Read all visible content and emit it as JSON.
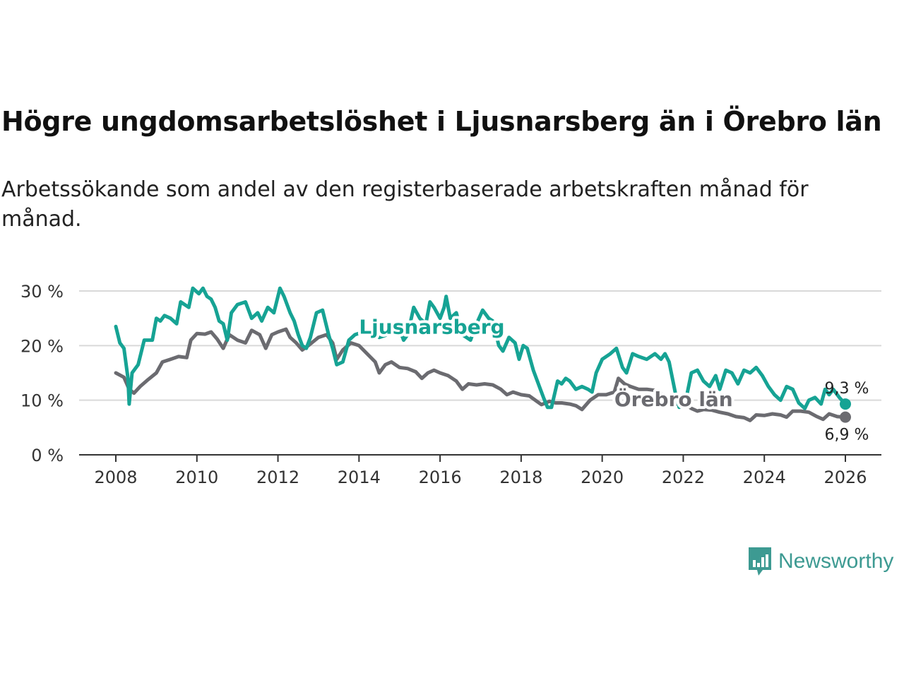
{
  "title": "Högre ungdomsarbetslöshet i Ljusnarsberg än i Örebro län",
  "subtitle": "Arbetssökande som andel av den registerbaserade arbetskraften månad för månad.",
  "brand": {
    "name": "Newsworthy",
    "icon": "newsworthy-logo-icon"
  },
  "colors": {
    "ljusnarsberg": "#16a394",
    "orebro": "#6b6b70",
    "grid": "#d9d9d9",
    "axis": "#333333",
    "text": "#333333"
  },
  "chart_data": {
    "type": "line",
    "title": "Högre ungdomsarbetslöshet i Ljusnarsberg än i Örebro län",
    "xlabel": "",
    "ylabel": "",
    "xlim": [
      2007.75,
      2026.95
    ],
    "ylim": [
      0,
      30
    ],
    "grid": true,
    "x_ticks": [
      {
        "value": 2008,
        "label": "2008"
      },
      {
        "value": 2010,
        "label": "2010"
      },
      {
        "value": 2012,
        "label": "2012"
      },
      {
        "value": 2014,
        "label": "2014"
      },
      {
        "value": 2016,
        "label": "2016"
      },
      {
        "value": 2018,
        "label": "2018"
      },
      {
        "value": 2020,
        "label": "2020"
      },
      {
        "value": 2022,
        "label": "2022"
      },
      {
        "value": 2024,
        "label": "2024"
      },
      {
        "value": 2026,
        "label": "2026"
      }
    ],
    "y_ticks": [
      {
        "value": 0,
        "label": "0 %"
      },
      {
        "value": 10,
        "label": "10 %"
      },
      {
        "value": 20,
        "label": "20 %"
      },
      {
        "value": 30,
        "label": "30 %"
      }
    ],
    "series": [
      {
        "name": "Örebro län",
        "key": "orebro",
        "end_label": "6,9 %",
        "end_value": 6.9,
        "points": [
          [
            2008.0,
            15
          ],
          [
            2008.2,
            14.2
          ],
          [
            2008.33,
            12
          ],
          [
            2008.45,
            11.3
          ],
          [
            2008.6,
            12.5
          ],
          [
            2008.8,
            13.8
          ],
          [
            2009.0,
            15
          ],
          [
            2009.15,
            17
          ],
          [
            2009.35,
            17.5
          ],
          [
            2009.55,
            18
          ],
          [
            2009.75,
            17.8
          ],
          [
            2009.85,
            21
          ],
          [
            2010.0,
            22.2
          ],
          [
            2010.2,
            22.1
          ],
          [
            2010.35,
            22.5
          ],
          [
            2010.5,
            21.2
          ],
          [
            2010.65,
            19.5
          ],
          [
            2010.8,
            22
          ],
          [
            2011.0,
            21
          ],
          [
            2011.2,
            20.5
          ],
          [
            2011.35,
            22.8
          ],
          [
            2011.55,
            22
          ],
          [
            2011.7,
            19.5
          ],
          [
            2011.85,
            22
          ],
          [
            2012.0,
            22.5
          ],
          [
            2012.2,
            23
          ],
          [
            2012.3,
            21.5
          ],
          [
            2012.45,
            20.5
          ],
          [
            2012.6,
            19.2
          ],
          [
            2012.75,
            20
          ],
          [
            2013.0,
            21.5
          ],
          [
            2013.2,
            22
          ],
          [
            2013.35,
            20.5
          ],
          [
            2013.45,
            17.5
          ],
          [
            2013.6,
            19.2
          ],
          [
            2013.8,
            20.5
          ],
          [
            2014.0,
            20
          ],
          [
            2014.2,
            18.5
          ],
          [
            2014.4,
            17
          ],
          [
            2014.5,
            15
          ],
          [
            2014.65,
            16.5
          ],
          [
            2014.8,
            17
          ],
          [
            2015.0,
            16
          ],
          [
            2015.2,
            15.8
          ],
          [
            2015.4,
            15.2
          ],
          [
            2015.55,
            14
          ],
          [
            2015.7,
            15
          ],
          [
            2015.85,
            15.5
          ],
          [
            2016.0,
            15
          ],
          [
            2016.2,
            14.5
          ],
          [
            2016.4,
            13.5
          ],
          [
            2016.55,
            12
          ],
          [
            2016.7,
            13
          ],
          [
            2016.9,
            12.8
          ],
          [
            2017.1,
            13
          ],
          [
            2017.3,
            12.8
          ],
          [
            2017.5,
            12
          ],
          [
            2017.65,
            11
          ],
          [
            2017.8,
            11.5
          ],
          [
            2018.0,
            11
          ],
          [
            2018.2,
            10.8
          ],
          [
            2018.35,
            10
          ],
          [
            2018.5,
            9.2
          ],
          [
            2018.7,
            9.8
          ],
          [
            2018.85,
            9.5
          ],
          [
            2019.0,
            9.5
          ],
          [
            2019.2,
            9.3
          ],
          [
            2019.35,
            9
          ],
          [
            2019.5,
            8.3
          ],
          [
            2019.7,
            10
          ],
          [
            2019.9,
            11
          ],
          [
            2020.1,
            11
          ],
          [
            2020.3,
            11.5
          ],
          [
            2020.4,
            14
          ],
          [
            2020.55,
            13
          ],
          [
            2020.7,
            12.5
          ],
          [
            2020.9,
            12
          ],
          [
            2021.1,
            12
          ],
          [
            2021.3,
            11.8
          ],
          [
            2021.5,
            11
          ],
          [
            2021.7,
            10
          ],
          [
            2021.85,
            9.3
          ],
          [
            2022.0,
            9.5
          ],
          [
            2022.2,
            8.5
          ],
          [
            2022.35,
            8
          ],
          [
            2022.5,
            8.3
          ],
          [
            2022.7,
            8.2
          ],
          [
            2022.9,
            7.8
          ],
          [
            2023.1,
            7.5
          ],
          [
            2023.3,
            7
          ],
          [
            2023.5,
            6.8
          ],
          [
            2023.65,
            6.3
          ],
          [
            2023.8,
            7.3
          ],
          [
            2024.0,
            7.2
          ],
          [
            2024.2,
            7.5
          ],
          [
            2024.4,
            7.3
          ],
          [
            2024.55,
            6.9
          ],
          [
            2024.7,
            8
          ],
          [
            2024.9,
            8
          ],
          [
            2025.1,
            7.8
          ],
          [
            2025.3,
            7
          ],
          [
            2025.45,
            6.5
          ],
          [
            2025.6,
            7.5
          ],
          [
            2025.8,
            7
          ],
          [
            2026.0,
            6.9
          ]
        ]
      },
      {
        "name": "Ljusnarsberg",
        "key": "ljusnarsberg",
        "end_label": "9,3 %",
        "end_value": 9.3,
        "points": [
          [
            2008.0,
            23.5
          ],
          [
            2008.1,
            20.5
          ],
          [
            2008.2,
            19.5
          ],
          [
            2008.3,
            14
          ],
          [
            2008.33,
            9.3
          ],
          [
            2008.4,
            15
          ],
          [
            2008.55,
            16.5
          ],
          [
            2008.7,
            21
          ],
          [
            2008.9,
            21
          ],
          [
            2009.0,
            25
          ],
          [
            2009.1,
            24.5
          ],
          [
            2009.2,
            25.5
          ],
          [
            2009.35,
            25
          ],
          [
            2009.5,
            24
          ],
          [
            2009.6,
            28
          ],
          [
            2009.8,
            27
          ],
          [
            2009.9,
            30.5
          ],
          [
            2010.05,
            29.5
          ],
          [
            2010.15,
            30.5
          ],
          [
            2010.25,
            29
          ],
          [
            2010.35,
            28.5
          ],
          [
            2010.45,
            27
          ],
          [
            2010.55,
            24.5
          ],
          [
            2010.65,
            24
          ],
          [
            2010.75,
            21
          ],
          [
            2010.85,
            26
          ],
          [
            2011.0,
            27.5
          ],
          [
            2011.2,
            28
          ],
          [
            2011.35,
            25
          ],
          [
            2011.5,
            26
          ],
          [
            2011.6,
            24.5
          ],
          [
            2011.75,
            27
          ],
          [
            2011.9,
            26
          ],
          [
            2012.05,
            30.5
          ],
          [
            2012.15,
            29
          ],
          [
            2012.3,
            26
          ],
          [
            2012.4,
            24.5
          ],
          [
            2012.5,
            22
          ],
          [
            2012.6,
            20
          ],
          [
            2012.7,
            19.5
          ],
          [
            2012.8,
            21.5
          ],
          [
            2012.95,
            26
          ],
          [
            2013.1,
            26.5
          ],
          [
            2013.25,
            22
          ],
          [
            2013.35,
            19.5
          ],
          [
            2013.45,
            16.5
          ],
          [
            2013.6,
            17
          ],
          [
            2013.75,
            21
          ],
          [
            2013.9,
            22
          ],
          [
            2014.1,
            22.5
          ],
          [
            2014.3,
            22
          ],
          [
            2014.5,
            21.5
          ],
          [
            2014.7,
            22
          ],
          [
            2014.9,
            23
          ],
          [
            2015.0,
            23
          ],
          [
            2015.1,
            21
          ],
          [
            2015.2,
            22
          ],
          [
            2015.35,
            27
          ],
          [
            2015.5,
            25
          ],
          [
            2015.65,
            24
          ],
          [
            2015.75,
            28
          ],
          [
            2015.85,
            27
          ],
          [
            2016.0,
            25
          ],
          [
            2016.1,
            27
          ],
          [
            2016.15,
            29
          ],
          [
            2016.25,
            25
          ],
          [
            2016.4,
            26
          ],
          [
            2016.55,
            22
          ],
          [
            2016.75,
            21
          ],
          [
            2016.9,
            24
          ],
          [
            2017.05,
            26.5
          ],
          [
            2017.2,
            25
          ],
          [
            2017.3,
            24.5
          ],
          [
            2017.45,
            20
          ],
          [
            2017.55,
            19
          ],
          [
            2017.7,
            21.5
          ],
          [
            2017.85,
            20.5
          ],
          [
            2017.95,
            17.5
          ],
          [
            2018.05,
            20
          ],
          [
            2018.15,
            19.5
          ],
          [
            2018.3,
            15.5
          ],
          [
            2018.45,
            12.5
          ],
          [
            2018.55,
            10.5
          ],
          [
            2018.65,
            8.7
          ],
          [
            2018.75,
            8.7
          ],
          [
            2018.9,
            13.5
          ],
          [
            2019.0,
            13
          ],
          [
            2019.1,
            14
          ],
          [
            2019.2,
            13.5
          ],
          [
            2019.35,
            12
          ],
          [
            2019.5,
            12.5
          ],
          [
            2019.65,
            12
          ],
          [
            2019.75,
            11.5
          ],
          [
            2019.85,
            15
          ],
          [
            2020.0,
            17.5
          ],
          [
            2020.2,
            18.5
          ],
          [
            2020.35,
            19.5
          ],
          [
            2020.5,
            16
          ],
          [
            2020.6,
            15
          ],
          [
            2020.75,
            18.5
          ],
          [
            2020.9,
            18
          ],
          [
            2021.1,
            17.5
          ],
          [
            2021.3,
            18.5
          ],
          [
            2021.45,
            17.5
          ],
          [
            2021.55,
            18.5
          ],
          [
            2021.65,
            17
          ],
          [
            2021.8,
            11.5
          ],
          [
            2021.9,
            8.7
          ],
          [
            2022.05,
            9.5
          ],
          [
            2022.2,
            15
          ],
          [
            2022.35,
            15.5
          ],
          [
            2022.5,
            13.5
          ],
          [
            2022.65,
            12.5
          ],
          [
            2022.8,
            14.5
          ],
          [
            2022.9,
            12
          ],
          [
            2023.05,
            15.5
          ],
          [
            2023.2,
            15
          ],
          [
            2023.35,
            13
          ],
          [
            2023.5,
            15.5
          ],
          [
            2023.65,
            15
          ],
          [
            2023.8,
            16
          ],
          [
            2023.95,
            14.5
          ],
          [
            2024.1,
            12.5
          ],
          [
            2024.25,
            11
          ],
          [
            2024.4,
            10
          ],
          [
            2024.55,
            12.5
          ],
          [
            2024.7,
            12
          ],
          [
            2024.85,
            9.5
          ],
          [
            2025.0,
            8.5
          ],
          [
            2025.1,
            10
          ],
          [
            2025.25,
            10.5
          ],
          [
            2025.4,
            9.3
          ],
          [
            2025.5,
            12
          ],
          [
            2025.6,
            11
          ],
          [
            2025.7,
            12
          ],
          [
            2025.85,
            10.5
          ],
          [
            2026.0,
            9.3
          ]
        ]
      }
    ],
    "annotations": [
      {
        "series": "ljusnarsberg",
        "text": "Ljusnarsberg",
        "x": 2014.0,
        "y": 23.5
      },
      {
        "series": "orebro",
        "text": "Örebro län",
        "x": 2020.3,
        "y": 10.2
      }
    ]
  }
}
